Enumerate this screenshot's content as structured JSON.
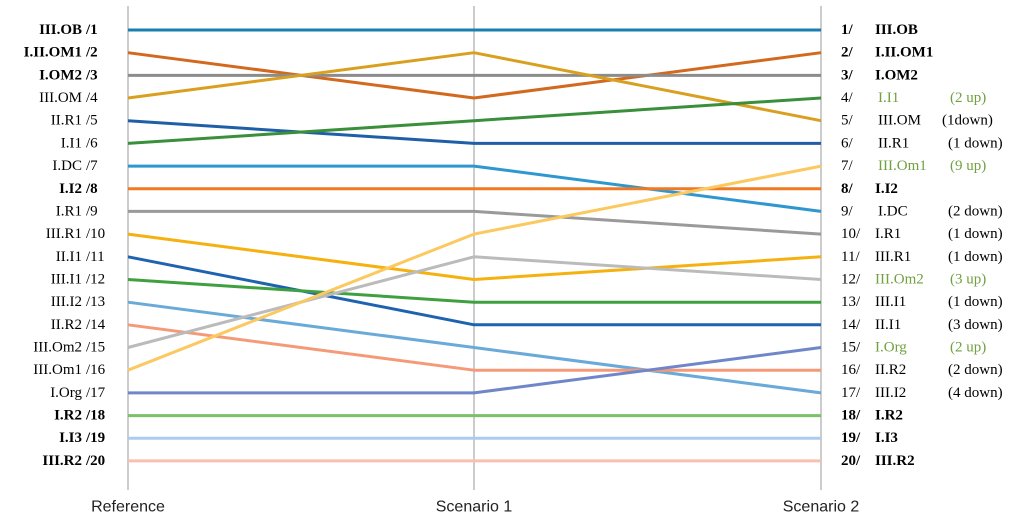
{
  "chart_data": {
    "type": "line",
    "x": [
      "Reference",
      "Scenario 1",
      "Scenario 2"
    ],
    "y_inverted": true,
    "yrange": [
      1,
      20
    ],
    "grid": "vertical lines at each scenario",
    "series": [
      {
        "name": "III.OB",
        "color": "#1a7fae",
        "values": [
          1,
          1,
          1
        ]
      },
      {
        "name": "I.II.OM1",
        "color": "#d2691e",
        "values": [
          2,
          4,
          2
        ]
      },
      {
        "name": "I.OM2",
        "color": "#8c8c8c",
        "values": [
          3,
          3,
          3
        ]
      },
      {
        "name": "III.OM",
        "color": "#d9a020",
        "values": [
          4,
          2,
          5
        ]
      },
      {
        "name": "II.R1",
        "color": "#1f5fa8",
        "values": [
          5,
          6,
          6
        ]
      },
      {
        "name": "I.I1",
        "color": "#3a8f3a",
        "values": [
          6,
          5,
          4
        ]
      },
      {
        "name": "I.DC",
        "color": "#2f97cf",
        "values": [
          7,
          7,
          9
        ]
      },
      {
        "name": "I.I2",
        "color": "#ee7a24",
        "values": [
          8,
          8,
          8
        ]
      },
      {
        "name": "I.R1",
        "color": "#9a9a9a",
        "values": [
          9,
          9,
          10
        ]
      },
      {
        "name": "III.R1",
        "color": "#f5b10f",
        "values": [
          10,
          12,
          11
        ]
      },
      {
        "name": "II.I1",
        "color": "#1e63b0",
        "values": [
          11,
          14,
          14
        ]
      },
      {
        "name": "III.I1",
        "color": "#3fa040",
        "values": [
          12,
          13,
          13
        ]
      },
      {
        "name": "III.I2",
        "color": "#6aaad9",
        "values": [
          13,
          15,
          17
        ]
      },
      {
        "name": "II.R2",
        "color": "#f59a78",
        "values": [
          14,
          16,
          16
        ]
      },
      {
        "name": "III.Om2",
        "color": "#bbbbbb",
        "values": [
          15,
          11,
          12
        ]
      },
      {
        "name": "III.Om1",
        "color": "#fcc960",
        "values": [
          16,
          10,
          7
        ]
      },
      {
        "name": "I.Org",
        "color": "#6f86c8",
        "values": [
          17,
          17,
          15
        ]
      },
      {
        "name": "I.R2",
        "color": "#7cc06a",
        "values": [
          18,
          18,
          18
        ]
      },
      {
        "name": "I.I3",
        "color": "#a9cdf0",
        "values": [
          19,
          19,
          19
        ]
      },
      {
        "name": "III.R2",
        "color": "#f8c0b0",
        "values": [
          20,
          20,
          20
        ]
      }
    ],
    "left_labels": [
      {
        "name": "III.OB",
        "rank": "/1",
        "bold": true
      },
      {
        "name": "I.II.OM1",
        "rank": "/2",
        "bold": true
      },
      {
        "name": "I.OM2",
        "rank": "/3",
        "bold": true
      },
      {
        "name": "III.OM",
        "rank": "/4",
        "bold": false
      },
      {
        "name": "II.R1",
        "rank": "/5",
        "bold": false
      },
      {
        "name": "I.I1",
        "rank": "/6",
        "bold": false
      },
      {
        "name": "I.DC",
        "rank": "/7",
        "bold": false
      },
      {
        "name": "I.I2",
        "rank": "/8",
        "bold": true
      },
      {
        "name": "I.R1",
        "rank": "/9",
        "bold": false
      },
      {
        "name": "III.R1",
        "rank": "/10",
        "bold": false
      },
      {
        "name": "II.I1",
        "rank": "/11",
        "bold": false
      },
      {
        "name": "III.I1",
        "rank": "/12",
        "bold": false
      },
      {
        "name": "III.I2",
        "rank": "/13",
        "bold": false
      },
      {
        "name": "II.R2",
        "rank": "/14",
        "bold": false
      },
      {
        "name": "III.Om2",
        "rank": "/15",
        "bold": false
      },
      {
        "name": "III.Om1",
        "rank": "/16",
        "bold": false
      },
      {
        "name": "I.Org",
        "rank": "/17",
        "bold": false
      },
      {
        "name": "I.R2",
        "rank": "/18",
        "bold": true
      },
      {
        "name": "I.I3",
        "rank": "/19",
        "bold": true
      },
      {
        "name": "III.R2",
        "rank": "/20",
        "bold": true
      }
    ],
    "right_labels": [
      {
        "rank": "1/",
        "name": "III.OB",
        "change": "",
        "bold": true,
        "green": false
      },
      {
        "rank": "2/",
        "name": "I.II.OM1",
        "change": "",
        "bold": true,
        "green": false
      },
      {
        "rank": "3/",
        "name": "I.OM2",
        "change": "",
        "bold": true,
        "green": false
      },
      {
        "rank": "4/",
        "name": "I.I1",
        "change": "(2 up)",
        "bold": false,
        "green": true
      },
      {
        "rank": "5/",
        "name": "III.OM",
        "change": "(1down)",
        "bold": false,
        "green": false
      },
      {
        "rank": "6/",
        "name": "II.R1",
        "change": "(1 down)",
        "bold": false,
        "green": false
      },
      {
        "rank": "7/",
        "name": "III.Om1",
        "change": "(9 up)",
        "bold": false,
        "green": true
      },
      {
        "rank": "8/",
        "name": "I.I2",
        "change": "",
        "bold": true,
        "green": false
      },
      {
        "rank": "9/",
        "name": "I.DC",
        "change": "(2 down)",
        "bold": false,
        "green": false
      },
      {
        "rank": "10/",
        "name": "I.R1",
        "change": "(1 down)",
        "bold": false,
        "green": false
      },
      {
        "rank": "11/",
        "name": "III.R1",
        "change": "(1 down)",
        "bold": false,
        "green": false
      },
      {
        "rank": "12/",
        "name": "III.Om2",
        "change": "(3 up)",
        "bold": false,
        "green": true
      },
      {
        "rank": "13/",
        "name": "III.I1",
        "change": "(1 down)",
        "bold": false,
        "green": false
      },
      {
        "rank": "14/",
        "name": "II.I1",
        "change": "(3 down)",
        "bold": false,
        "green": false
      },
      {
        "rank": "15/",
        "name": "I.Org",
        "change": "(2 up)",
        "bold": false,
        "green": true
      },
      {
        "rank": "16/",
        "name": "II.R2",
        "change": "(2 down)",
        "bold": false,
        "green": false
      },
      {
        "rank": "17/",
        "name": "III.I2",
        "change": "(4 down)",
        "bold": false,
        "green": false
      },
      {
        "rank": "18/",
        "name": "I.R2",
        "change": "",
        "bold": true,
        "green": false
      },
      {
        "rank": "19/",
        "name": "I.I3",
        "change": "",
        "bold": true,
        "green": false
      },
      {
        "rank": "20/",
        "name": "III.R2",
        "change": "",
        "bold": true,
        "green": false
      }
    ]
  }
}
